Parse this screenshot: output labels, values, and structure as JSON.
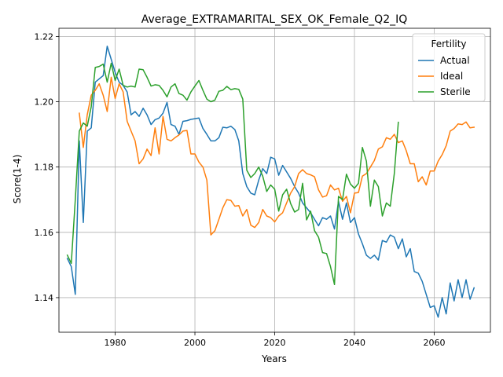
{
  "chart_data": {
    "type": "line",
    "title": "Average_EXTRAMARITAL_SEX_OK_Female_Q2_IQ",
    "xlabel": "Years",
    "ylabel": "Score(1-4)",
    "xlim": [
      1965.9,
      2074.1
    ],
    "ylim": [
      1.1294,
      1.2225
    ],
    "xticks": [
      1980,
      2000,
      2020,
      2040,
      2060
    ],
    "yticks": [
      1.14,
      1.16,
      1.18,
      1.2,
      1.22
    ],
    "xtick_labels": [
      "1980",
      "2000",
      "2020",
      "2040",
      "2060"
    ],
    "ytick_labels": [
      "1.14",
      "1.16",
      "1.18",
      "1.20",
      "1.22"
    ],
    "grid": true,
    "legend": {
      "title": "Fertility",
      "position": "top-right"
    },
    "series": [
      {
        "name": "Actual",
        "color": "#1f77b4",
        "x": [
          1968,
          1969,
          1970,
          1971,
          1972,
          1973,
          1974,
          1975,
          1976,
          1977,
          1978,
          1979,
          1980,
          1981,
          1982,
          1983,
          1984,
          1985,
          1986,
          1987,
          1988,
          1989,
          1990,
          1991,
          1992,
          1993,
          1994,
          1995,
          1996,
          1997,
          1998,
          1999,
          2000,
          2001,
          2002,
          2003,
          2004,
          2005,
          2006,
          2007,
          2008,
          2009,
          2010,
          2011,
          2012,
          2013,
          2014,
          2015,
          2016,
          2017,
          2018,
          2019,
          2020,
          2021,
          2022,
          2023,
          2024,
          2025,
          2026,
          2027,
          2028,
          2029,
          2030,
          2031,
          2032,
          2033,
          2034,
          2035,
          2036,
          2037,
          2038,
          2039,
          2040,
          2041,
          2042,
          2043,
          2044,
          2045,
          2046,
          2047,
          2048,
          2049,
          2050,
          2051,
          2052,
          2053,
          2054,
          2055,
          2056,
          2057,
          2058,
          2059,
          2060,
          2061,
          2062,
          2063,
          2064,
          2065,
          2066,
          2067,
          2068,
          2069,
          2070
        ],
        "y": [
          1.152,
          1.1495,
          1.141,
          1.188,
          1.163,
          1.191,
          1.192,
          1.206,
          1.207,
          1.208,
          1.217,
          1.213,
          1.209,
          1.206,
          1.205,
          1.203,
          1.196,
          1.197,
          1.1955,
          1.198,
          1.196,
          1.193,
          1.1945,
          1.195,
          1.1965,
          1.1998,
          1.193,
          1.1925,
          1.19,
          1.194,
          1.1942,
          1.1946,
          1.1948,
          1.195,
          1.1918,
          1.19,
          1.188,
          1.188,
          1.189,
          1.1922,
          1.192,
          1.1925,
          1.1915,
          1.188,
          1.178,
          1.174,
          1.172,
          1.1715,
          1.176,
          1.1795,
          1.178,
          1.183,
          1.1825,
          1.1775,
          1.1805,
          1.1785,
          1.1765,
          1.174,
          1.172,
          1.169,
          1.1675,
          1.166,
          1.164,
          1.162,
          1.1645,
          1.164,
          1.165,
          1.161,
          1.1695,
          1.164,
          1.169,
          1.163,
          1.1645,
          1.1595,
          1.1565,
          1.153,
          1.152,
          1.153,
          1.1515,
          1.1575,
          1.157,
          1.1592,
          1.1585,
          1.155,
          1.158,
          1.1525,
          1.155,
          1.148,
          1.1475,
          1.145,
          1.141,
          1.137,
          1.1375,
          1.134,
          1.14,
          1.135,
          1.1445,
          1.139,
          1.1455,
          1.14,
          1.1455,
          1.1395,
          1.143
        ]
      },
      {
        "name": "Ideal",
        "color": "#ff7f0e",
        "x": [
          1971,
          1972,
          1973,
          1974,
          1975,
          1976,
          1977,
          1978,
          1979,
          1980,
          1981,
          1982,
          1983,
          1984,
          1985,
          1986,
          1987,
          1988,
          1989,
          1990,
          1991,
          1992,
          1993,
          1994,
          1995,
          1996,
          1997,
          1998,
          1999,
          2000,
          2001,
          2002,
          2003,
          2004,
          2005,
          2006,
          2007,
          2008,
          2009,
          2010,
          2011,
          2012,
          2013,
          2014,
          2015,
          2016,
          2017,
          2018,
          2019,
          2020,
          2021,
          2022,
          2023,
          2024,
          2025,
          2026,
          2027,
          2028,
          2029,
          2030,
          2031,
          2032,
          2033,
          2034,
          2035,
          2036,
          2037,
          2038,
          2039,
          2040,
          2041,
          2042,
          2043,
          2044,
          2045,
          2046,
          2047,
          2048,
          2049,
          2050,
          2051,
          2052,
          2053,
          2054,
          2055,
          2056,
          2057,
          2058,
          2059,
          2060,
          2061,
          2062,
          2063,
          2064,
          2065,
          2066,
          2067,
          2068,
          2069,
          2070
        ],
        "y": [
          1.1965,
          1.186,
          1.196,
          1.202,
          1.2035,
          1.2055,
          1.202,
          1.197,
          1.2075,
          1.201,
          1.2055,
          1.203,
          1.194,
          1.191,
          1.188,
          1.181,
          1.1825,
          1.1855,
          1.1835,
          1.192,
          1.184,
          1.1955,
          1.1885,
          1.188,
          1.189,
          1.1898,
          1.191,
          1.1912,
          1.184,
          1.184,
          1.1815,
          1.18,
          1.176,
          1.1592,
          1.1605,
          1.164,
          1.1675,
          1.17,
          1.1698,
          1.168,
          1.1682,
          1.165,
          1.167,
          1.1622,
          1.1615,
          1.163,
          1.167,
          1.165,
          1.1645,
          1.1632,
          1.165,
          1.166,
          1.169,
          1.172,
          1.174,
          1.178,
          1.1792,
          1.178,
          1.1776,
          1.177,
          1.173,
          1.1708,
          1.1712,
          1.1745,
          1.173,
          1.1735,
          1.1695,
          1.171,
          1.166,
          1.172,
          1.1722,
          1.1772,
          1.178,
          1.18,
          1.182,
          1.1855,
          1.1862,
          1.189,
          1.1885,
          1.19,
          1.1875,
          1.188,
          1.185,
          1.181,
          1.181,
          1.1755,
          1.177,
          1.1745,
          1.1788,
          1.1788,
          1.1818,
          1.1838,
          1.1865,
          1.191,
          1.1918,
          1.1932,
          1.193,
          1.1938,
          1.192,
          1.1922
        ]
      },
      {
        "name": "Sterile",
        "color": "#2ca02c",
        "x": [
          1968,
          1969,
          1970,
          1971,
          1972,
          1973,
          1974,
          1975,
          1976,
          1977,
          1978,
          1979,
          1980,
          1981,
          1982,
          1983,
          1984,
          1985,
          1986,
          1987,
          1988,
          1989,
          1990,
          1991,
          1992,
          1993,
          1994,
          1995,
          1996,
          1997,
          1998,
          1999,
          2000,
          2001,
          2002,
          2003,
          2004,
          2005,
          2006,
          2007,
          2008,
          2009,
          2010,
          2011,
          2012,
          2013,
          2014,
          2015,
          2016,
          2017,
          2018,
          2019,
          2020,
          2021,
          2022,
          2023,
          2024,
          2025,
          2026,
          2027,
          2028,
          2029,
          2030,
          2031,
          2032,
          2033,
          2034,
          2035,
          2036,
          2037,
          2038,
          2039,
          2040,
          2041,
          2042,
          2043,
          2044,
          2045,
          2046,
          2047,
          2048,
          2049,
          2050,
          2051
        ],
        "y": [
          1.153,
          1.1505,
          1.17,
          1.191,
          1.1935,
          1.1925,
          1.1985,
          1.2105,
          1.2108,
          1.2115,
          1.206,
          1.2118,
          1.2065,
          1.21,
          1.205,
          1.2045,
          1.2048,
          1.2045,
          1.21,
          1.2098,
          1.2075,
          1.2048,
          1.2052,
          1.205,
          1.2035,
          1.2015,
          1.2045,
          1.2055,
          1.2025,
          1.202,
          1.2005,
          1.203,
          1.2048,
          1.2065,
          1.2035,
          1.2008,
          1.2,
          1.2005,
          1.2032,
          1.2035,
          1.2047,
          1.2037,
          1.204,
          1.2038,
          1.2008,
          1.179,
          1.1768,
          1.178,
          1.18,
          1.1772,
          1.1725,
          1.1745,
          1.1732,
          1.1665,
          1.1715,
          1.1732,
          1.1688,
          1.1662,
          1.167,
          1.175,
          1.1638,
          1.1665,
          1.1605,
          1.1585,
          1.1538,
          1.1535,
          1.1495,
          1.144,
          1.171,
          1.17,
          1.1778,
          1.1748,
          1.1735,
          1.175,
          1.186,
          1.1818,
          1.168,
          1.176,
          1.174,
          1.165,
          1.169,
          1.168,
          1.178,
          1.1937
        ]
      }
    ]
  }
}
